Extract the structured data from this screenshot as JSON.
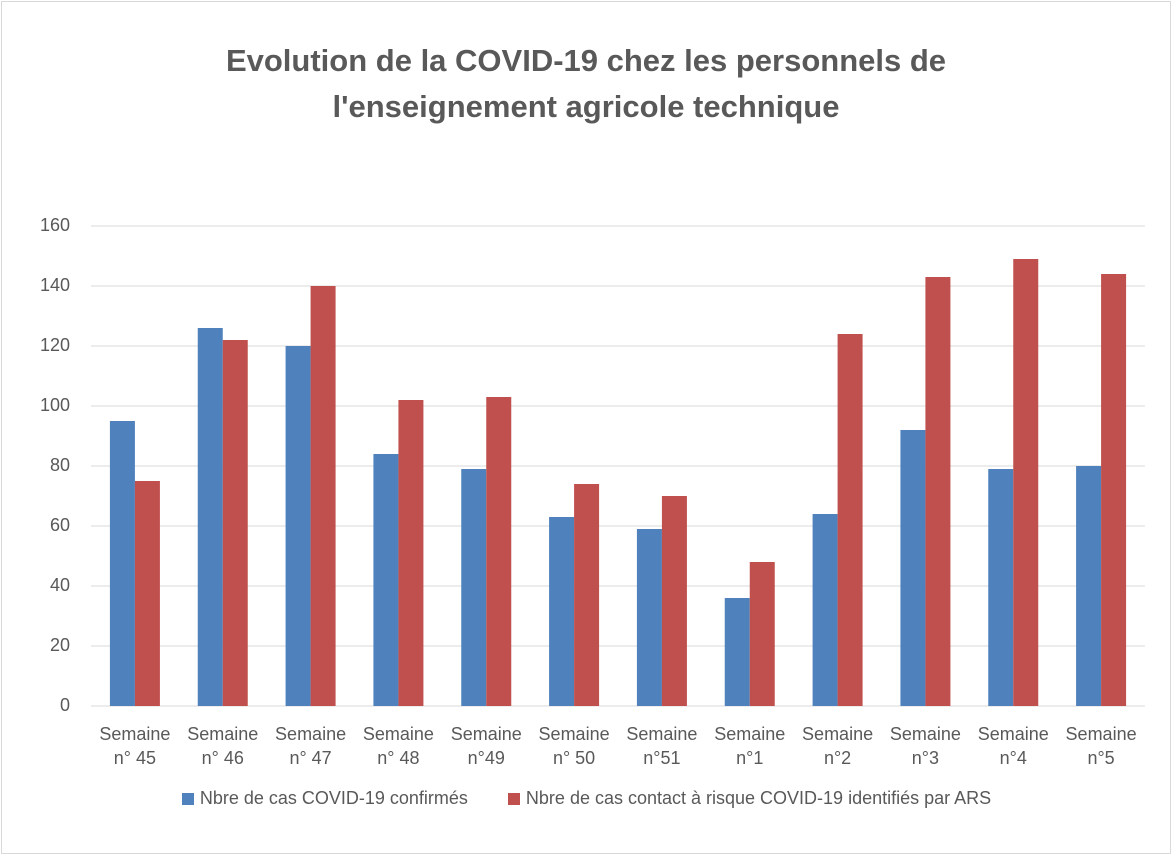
{
  "chart_data": {
    "type": "bar",
    "title": "Evolution de la COVID-19 chez les personnels de l'enseignement agricole technique",
    "categories": [
      "Semaine n° 45",
      "Semaine n° 46",
      "Semaine n° 47",
      "Semaine n° 48",
      "Semaine n°49",
      "Semaine n° 50",
      "Semaine n°51",
      "Semaine n°1",
      "Semaine n°2",
      "Semaine n°3",
      "Semaine n°4",
      "Semaine n°5"
    ],
    "series": [
      {
        "name": "Nbre de cas COVID-19 confirmés",
        "color": "#4f81bd",
        "values": [
          95,
          126,
          120,
          84,
          79,
          63,
          59,
          36,
          64,
          92,
          79,
          80
        ]
      },
      {
        "name": "Nbre de cas contact à risque COVID-19 identifiés par ARS",
        "color": "#c0504d",
        "values": [
          75,
          122,
          140,
          102,
          103,
          74,
          70,
          48,
          124,
          143,
          149,
          144
        ]
      }
    ],
    "ylim": [
      0,
      160
    ],
    "yticks": [
      0,
      20,
      40,
      60,
      80,
      100,
      120,
      140,
      160
    ],
    "grid": true,
    "legend": "bottom"
  }
}
